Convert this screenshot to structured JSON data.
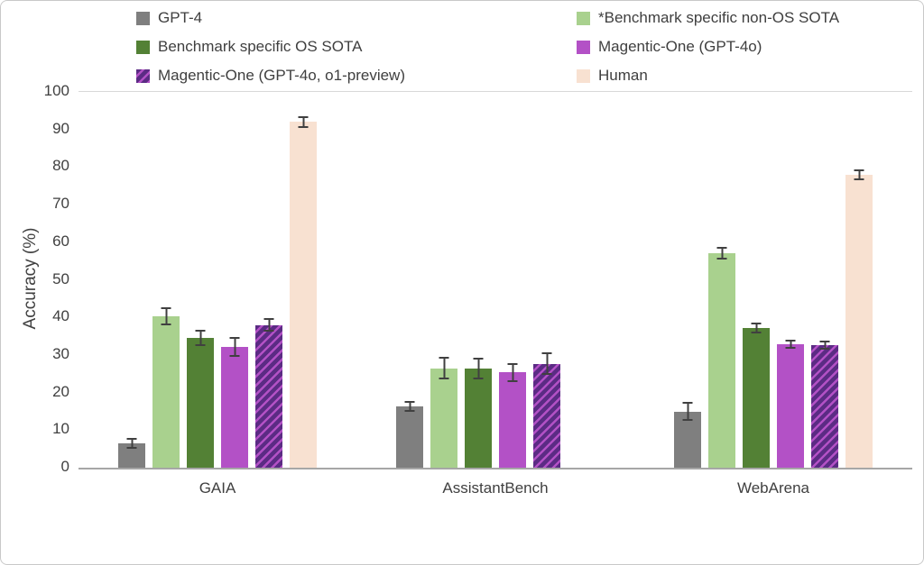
{
  "chart_data": {
    "type": "bar",
    "title": "",
    "xlabel": "",
    "ylabel": "Accuracy (%)",
    "ylim": [
      0,
      100
    ],
    "ytick_step": 10,
    "grid": false,
    "legend_position": "top",
    "error_bars": true,
    "error_bar_color": "#404040",
    "categories": [
      "GAIA",
      "AssistantBench",
      "WebArena"
    ],
    "series": [
      {
        "name": "GPT-4",
        "color": "#7f7f7f",
        "pattern": "solid",
        "values": [
          6.5,
          16.3,
          14.9
        ],
        "errors": [
          1.5,
          1.4,
          2.5
        ]
      },
      {
        "name": "*Benchmark specific non-OS SOTA",
        "color": "#a9d18e",
        "pattern": "solid",
        "values": [
          40.3,
          26.4,
          57.1
        ],
        "errors": [
          2.5,
          3.0,
          1.6
        ]
      },
      {
        "name": "Benchmark specific OS SOTA",
        "color": "#538135",
        "pattern": "solid",
        "values": [
          34.5,
          26.4,
          37.2
        ],
        "errors": [
          2.2,
          2.8,
          1.5
        ]
      },
      {
        "name": "Magentic-One (GPT-4o)",
        "color": "#b351c6",
        "pattern": "solid",
        "values": [
          32.1,
          25.4,
          32.9
        ],
        "errors": [
          2.6,
          2.5,
          1.2
        ]
      },
      {
        "name": "Magentic-One (GPT-4o, o1-preview)",
        "color": "#5b2b84",
        "pattern": "hatch",
        "hatch_color": "#b351c6",
        "values": [
          38.0,
          27.6,
          32.6
        ],
        "errors": [
          1.8,
          3.0,
          1.2
        ]
      },
      {
        "name": "Human",
        "color": "#f8e1d1",
        "pattern": "solid",
        "values": [
          92.0,
          null,
          78.0
        ],
        "errors": [
          1.5,
          null,
          1.5
        ]
      }
    ]
  }
}
